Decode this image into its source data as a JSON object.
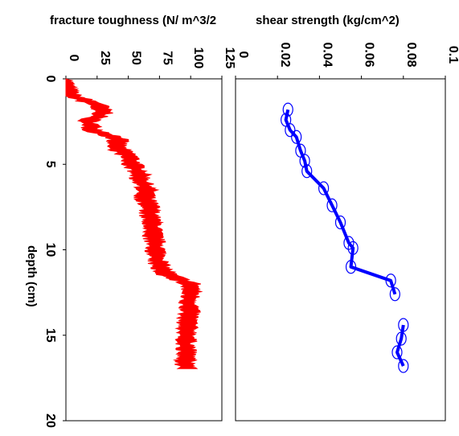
{
  "chart_data": [
    {
      "type": "line",
      "title": "",
      "ylabel": "shear strength (kg/cm^2)",
      "xlabel": "",
      "xlim": [
        0,
        20
      ],
      "ylim": [
        0,
        0.1
      ],
      "yticks": [
        "0",
        "0.02",
        "0.04",
        "0.06",
        "0.08",
        "0.1"
      ],
      "xticks": [],
      "color": "#0000ff",
      "marker": "circle",
      "series": [
        {
          "segments": [
            [
              {
                "x": 1.8,
                "y": 0.025
              },
              {
                "x": 2.4,
                "y": 0.024
              },
              {
                "x": 3.0,
                "y": 0.026
              },
              {
                "x": 3.4,
                "y": 0.029
              },
              {
                "x": 4.2,
                "y": 0.031
              },
              {
                "x": 4.8,
                "y": 0.033
              },
              {
                "x": 5.4,
                "y": 0.034
              },
              {
                "x": 6.4,
                "y": 0.042
              },
              {
                "x": 7.4,
                "y": 0.046
              },
              {
                "x": 8.4,
                "y": 0.05
              },
              {
                "x": 9.6,
                "y": 0.054
              },
              {
                "x": 9.9,
                "y": 0.056
              },
              {
                "x": 11.0,
                "y": 0.055
              },
              {
                "x": 11.8,
                "y": 0.074
              },
              {
                "x": 12.6,
                "y": 0.076
              }
            ],
            [
              {
                "x": 14.4,
                "y": 0.08
              },
              {
                "x": 15.2,
                "y": 0.079
              },
              {
                "x": 16.0,
                "y": 0.077
              },
              {
                "x": 16.8,
                "y": 0.08
              }
            ]
          ]
        }
      ]
    },
    {
      "type": "area",
      "title": "",
      "ylabel": "fracture toughness (N/ m^3/2",
      "xlabel": "depth (cm)",
      "xlim": [
        0,
        20
      ],
      "ylim": [
        0,
        125
      ],
      "yticks": [
        "0",
        "25",
        "50",
        "75",
        "100",
        "125"
      ],
      "xticks": [
        "0",
        "5",
        "10",
        "15",
        "20"
      ],
      "color": "#ff0000",
      "series": [
        {
          "x": [
            0,
            0.5,
            1.0,
            1.5,
            2.0,
            2.5,
            3.0,
            3.5,
            4.0,
            4.5,
            5.0,
            5.5,
            6.0,
            6.5,
            7.0,
            7.5,
            8.0,
            8.5,
            9.0,
            9.5,
            10.0,
            10.5,
            11.0,
            11.5,
            12.0,
            12.5,
            13.0,
            13.5,
            14.0,
            14.5,
            15.0,
            15.5,
            16.0,
            16.5,
            17.0
          ],
          "values": [
            0,
            3,
            7,
            28,
            33,
            20,
            25,
            45,
            43,
            53,
            56,
            62,
            63,
            68,
            66,
            70,
            70,
            72,
            72,
            74,
            75,
            76,
            78,
            85,
            103,
            103,
            101,
            102,
            101,
            100,
            100,
            99,
            99,
            99,
            99
          ]
        }
      ]
    }
  ]
}
